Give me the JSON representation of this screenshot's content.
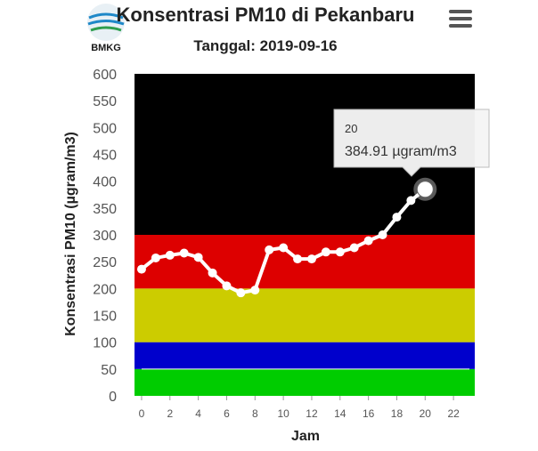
{
  "header": {
    "logo_text": "BMKG",
    "menu_icon": "hamburger-menu-icon"
  },
  "chart_data": {
    "type": "line",
    "title": "Konsentrasi PM10 di Pekanbaru",
    "subtitle": "Tanggal: 2019-09-16",
    "xlabel": "Jam",
    "ylabel": "Konsentrasi PM10 (µgram/m3)",
    "xlim": [
      -0.5,
      23.5
    ],
    "ylim": [
      0,
      600
    ],
    "x_ticks": [
      0,
      2,
      4,
      6,
      8,
      10,
      12,
      14,
      16,
      18,
      20,
      22
    ],
    "y_ticks": [
      0,
      50,
      100,
      150,
      200,
      250,
      300,
      350,
      400,
      450,
      500,
      550,
      600
    ],
    "bands": [
      {
        "from": 0,
        "to": 50,
        "color": "#00cc00"
      },
      {
        "from": 50,
        "to": 100,
        "color": "#0000cc"
      },
      {
        "from": 100,
        "to": 200,
        "color": "#cccc00"
      },
      {
        "from": 200,
        "to": 300,
        "color": "#dd0000"
      },
      {
        "from": 300,
        "to": 600,
        "color": "#000000"
      }
    ],
    "series": [
      {
        "color": "#ffffff",
        "x": [
          0,
          1,
          2,
          3,
          4,
          5,
          6,
          7,
          8,
          9,
          10,
          11,
          12,
          13,
          14,
          15,
          16,
          17,
          18,
          19,
          20
        ],
        "y": [
          236,
          257,
          262,
          266,
          258,
          229,
          205,
          192,
          197,
          272,
          276,
          255,
          255,
          268,
          268,
          276,
          289,
          300,
          333,
          364,
          384.91
        ]
      }
    ],
    "tooltip": {
      "x_label": "20",
      "value_text": "384.91 µgram/m3"
    }
  }
}
